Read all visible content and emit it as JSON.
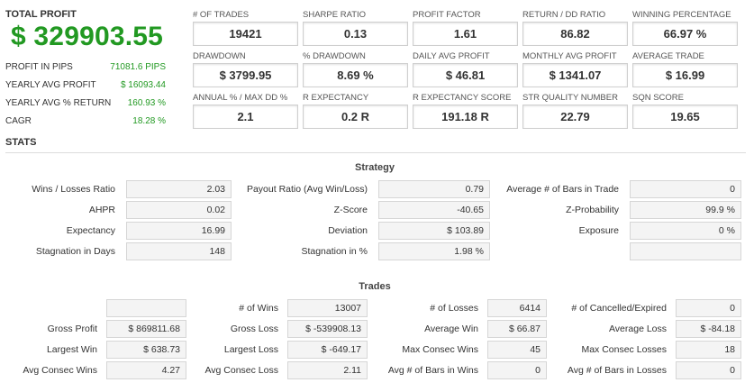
{
  "summary": {
    "total_profit_label": "TOTAL PROFIT",
    "total_profit_value": "$ 329903.55",
    "rows": [
      {
        "label": "PROFIT IN PIPS",
        "value": "71081.6 PIPS"
      },
      {
        "label": "YEARLY AVG PROFIT",
        "value": "$ 16093.44"
      },
      {
        "label": "YEARLY AVG % RETURN",
        "value": "160.93 %"
      },
      {
        "label": "CAGR",
        "value": "18.28 %"
      }
    ]
  },
  "metrics": [
    {
      "label": "# OF TRADES",
      "value": "19421"
    },
    {
      "label": "SHARPE RATIO",
      "value": "0.13"
    },
    {
      "label": "PROFIT FACTOR",
      "value": "1.61"
    },
    {
      "label": "RETURN / DD RATIO",
      "value": "86.82"
    },
    {
      "label": "WINNING PERCENTAGE",
      "value": "66.97 %"
    },
    {
      "label": "DRAWDOWN",
      "value": "$ 3799.95"
    },
    {
      "label": "% DRAWDOWN",
      "value": "8.69 %"
    },
    {
      "label": "DAILY AVG PROFIT",
      "value": "$ 46.81"
    },
    {
      "label": "MONTHLY AVG PROFIT",
      "value": "$ 1341.07"
    },
    {
      "label": "AVERAGE TRADE",
      "value": "$ 16.99"
    },
    {
      "label": "ANNUAL % / MAX DD %",
      "value": "2.1"
    },
    {
      "label": "R EXPECTANCY",
      "value": "0.2 R"
    },
    {
      "label": "R EXPECTANCY SCORE",
      "value": "191.18 R"
    },
    {
      "label": "STR QUALITY NUMBER",
      "value": "22.79"
    },
    {
      "label": "SQN SCORE",
      "value": "19.65"
    }
  ],
  "stats_title": "STATS",
  "strategy": {
    "title": "Strategy",
    "rows": [
      [
        {
          "label": "Wins / Losses Ratio",
          "value": "2.03"
        },
        {
          "label": "Payout Ratio (Avg Win/Loss)",
          "value": "0.79"
        },
        {
          "label": "Average # of Bars in Trade",
          "value": "0"
        }
      ],
      [
        {
          "label": "AHPR",
          "value": "0.02"
        },
        {
          "label": "Z-Score",
          "value": "-40.65"
        },
        {
          "label": "Z-Probability",
          "value": "99.9 %"
        }
      ],
      [
        {
          "label": "Expectancy",
          "value": "16.99"
        },
        {
          "label": "Deviation",
          "value": "$ 103.89"
        },
        {
          "label": "Exposure",
          "value": "0 %"
        }
      ],
      [
        {
          "label": "Stagnation in Days",
          "value": "148"
        },
        {
          "label": "Stagnation in %",
          "value": "1.98 %"
        },
        {
          "label": "",
          "value": ""
        }
      ]
    ]
  },
  "trades": {
    "title": "Trades",
    "rows": [
      [
        {
          "label": "",
          "value": ""
        },
        {
          "label": "# of Wins",
          "value": "13007"
        },
        {
          "label": "# of Losses",
          "value": "6414"
        },
        {
          "label": "# of Cancelled/Expired",
          "value": "0"
        }
      ],
      [
        {
          "label": "Gross Profit",
          "value": "$ 869811.68"
        },
        {
          "label": "Gross Loss",
          "value": "$ -539908.13"
        },
        {
          "label": "Average Win",
          "value": "$ 66.87"
        },
        {
          "label": "Average Loss",
          "value": "$ -84.18"
        }
      ],
      [
        {
          "label": "Largest Win",
          "value": "$ 638.73"
        },
        {
          "label": "Largest Loss",
          "value": "$ -649.17"
        },
        {
          "label": "Max Consec Wins",
          "value": "45"
        },
        {
          "label": "Max Consec Losses",
          "value": "18"
        }
      ],
      [
        {
          "label": "Avg Consec Wins",
          "value": "4.27"
        },
        {
          "label": "Avg Consec Loss",
          "value": "2.11"
        },
        {
          "label": "Avg # of Bars in Wins",
          "value": "0"
        },
        {
          "label": "Avg # of Bars in Losses",
          "value": "0"
        }
      ]
    ]
  }
}
